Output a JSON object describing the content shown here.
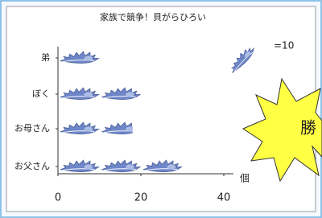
{
  "chart_data": {
    "type": "pictograph",
    "title": "家族で競争！貝がらひろい",
    "categories": [
      "弟",
      "ぼく",
      "お母さん",
      "お父さん"
    ],
    "values": [
      10,
      20,
      18,
      30
    ],
    "color": "#6f86c8",
    "unit": {
      "value": 10,
      "label": "=10"
    },
    "xlim": [
      0,
      40
    ],
    "xticks": [
      0,
      20,
      40
    ],
    "x_label": "個",
    "annotation": "勝"
  }
}
